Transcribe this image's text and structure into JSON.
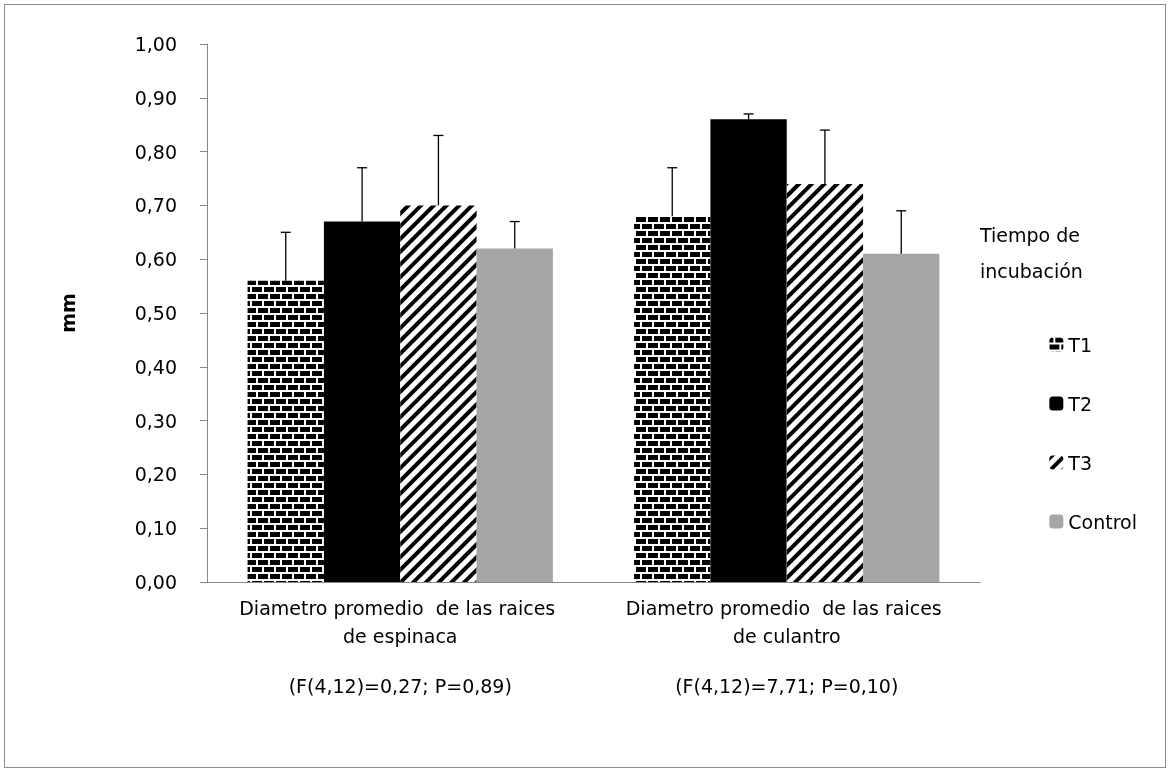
{
  "chart_data": {
    "type": "bar",
    "ylabel": "mm",
    "legend_title": "Tiempo de incubación",
    "categories": [
      "Diametro promedio  de las raices de espinaca",
      "Diametro promedio  de las raices de culantro"
    ],
    "series": [
      {
        "name": "T1",
        "color": "#000000",
        "values": [
          0.56,
          0.68
        ],
        "errors": [
          [
            0.56,
            0.65
          ],
          [
            0.68,
            0.77
          ]
        ]
      },
      {
        "name": "T2",
        "color": "#000000",
        "values": [
          0.67,
          0.86
        ],
        "errors": [
          [
            0.67,
            0.77
          ],
          [
            0.86,
            0.87
          ]
        ]
      },
      {
        "name": "T3",
        "color": "#000000",
        "values": [
          0.7,
          0.74
        ],
        "errors": [
          [
            0.7,
            0.83
          ],
          [
            0.74,
            0.84
          ]
        ]
      },
      {
        "name": "Control",
        "color": "#a6a6a6",
        "values": [
          0.62,
          0.61
        ],
        "errors": [
          [
            0.62,
            0.67
          ],
          [
            0.61,
            0.69
          ]
        ]
      }
    ],
    "ylim": [
      0,
      1
    ],
    "yticks": [
      {
        "value": 0,
        "label": "0,00"
      },
      {
        "value": 0.1,
        "label": "0,10"
      },
      {
        "value": 0.2,
        "label": "0,20"
      },
      {
        "value": 0.3,
        "label": "0,30"
      },
      {
        "value": 0.4,
        "label": "0,40"
      },
      {
        "value": 0.5,
        "label": "0,50"
      },
      {
        "value": 0.6,
        "label": "0,60"
      },
      {
        "value": 0.7,
        "label": "0,70"
      },
      {
        "value": 0.8,
        "label": "0,80"
      },
      {
        "value": 0.9,
        "label": "0,90"
      },
      {
        "value": 1,
        "label": "1,00"
      }
    ],
    "grid": false,
    "legend": "right",
    "annotations": [
      "(F(4,12)=0,27; P=0,89)",
      "(F(4,12)=7,71; P=0,10)"
    ]
  }
}
